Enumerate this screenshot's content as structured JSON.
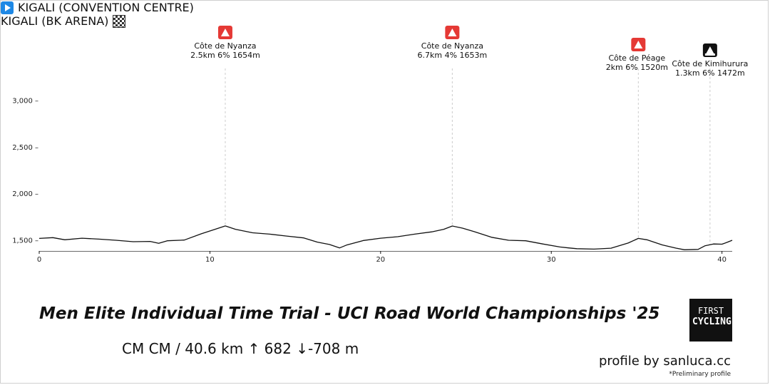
{
  "chart_data": {
    "type": "area",
    "title": "Men Elite Individual Time Trial - UCI Road World Championships '25",
    "xlabel": "",
    "ylabel": "",
    "xlim": [
      0,
      40.6
    ],
    "ylim": [
      1400,
      3300
    ],
    "x_ticks": [
      0,
      10,
      20,
      30,
      40
    ],
    "y_ticks": [
      1500,
      2000,
      2500,
      3000
    ],
    "y_tick_labels": [
      "1,500 –",
      "2,000 –",
      "2,500 –",
      "3,000 –"
    ],
    "profile": [
      [
        0,
        1520
      ],
      [
        0.8,
        1528
      ],
      [
        1.5,
        1505
      ],
      [
        2.5,
        1522
      ],
      [
        3.5,
        1512
      ],
      [
        4.5,
        1500
      ],
      [
        5.5,
        1485
      ],
      [
        6.5,
        1488
      ],
      [
        7.0,
        1468
      ],
      [
        7.5,
        1495
      ],
      [
        8.5,
        1502
      ],
      [
        9.5,
        1570
      ],
      [
        10.3,
        1618
      ],
      [
        10.9,
        1654
      ],
      [
        11.5,
        1618
      ],
      [
        12.5,
        1580
      ],
      [
        13.5,
        1566
      ],
      [
        14.5,
        1545
      ],
      [
        15.5,
        1525
      ],
      [
        16.3,
        1480
      ],
      [
        17.0,
        1455
      ],
      [
        17.6,
        1418
      ],
      [
        18.0,
        1448
      ],
      [
        19.0,
        1498
      ],
      [
        20.0,
        1522
      ],
      [
        21.0,
        1538
      ],
      [
        22.0,
        1566
      ],
      [
        23.0,
        1590
      ],
      [
        23.7,
        1618
      ],
      [
        24.2,
        1653
      ],
      [
        24.8,
        1630
      ],
      [
        25.5,
        1592
      ],
      [
        26.5,
        1532
      ],
      [
        27.5,
        1500
      ],
      [
        28.5,
        1495
      ],
      [
        29.5,
        1460
      ],
      [
        30.5,
        1428
      ],
      [
        31.0,
        1418
      ],
      [
        31.5,
        1410
      ],
      [
        32.5,
        1405
      ],
      [
        33.5,
        1415
      ],
      [
        34.5,
        1470
      ],
      [
        35.1,
        1520
      ],
      [
        35.6,
        1505
      ],
      [
        36.5,
        1450
      ],
      [
        37.3,
        1416
      ],
      [
        37.8,
        1398
      ],
      [
        38.6,
        1402
      ],
      [
        39.0,
        1440
      ],
      [
        39.5,
        1460
      ],
      [
        40.0,
        1458
      ],
      [
        40.3,
        1478
      ],
      [
        40.6,
        1500
      ]
    ],
    "climbs": [
      {
        "name": "Côte de Nyanza",
        "details": "2.5km 6% 1654m",
        "km": 10.9,
        "category": "climb"
      },
      {
        "name": "Côte de Nyanza",
        "details": "6.7km 4% 1653m",
        "km": 24.2,
        "category": "climb"
      },
      {
        "name": "Côte de Péage",
        "details": "2km 6% 1520m",
        "km": 35.1,
        "category": "climb"
      },
      {
        "name": "Côte de Kimihurura",
        "details": "1.3km 6% 1472m",
        "km": 39.3,
        "category": "finish-climb"
      }
    ],
    "colors": {
      "climb_marker": "#e53935",
      "finish_marker": "#111111",
      "line": "#111111",
      "guide": "#cccccc"
    }
  },
  "start": {
    "label": "KIGALI (CONVENTION CENTRE)",
    "icon": "play-icon"
  },
  "finish": {
    "label": "KIGALI (BK ARENA)",
    "icon": "checkered-flag-icon"
  },
  "race": {
    "title": "Men Elite Individual Time Trial - UCI Road World Championships '25"
  },
  "stats": {
    "text": "CM CM / 40.6 km  ↑ 682 ↓-708 m"
  },
  "logo": {
    "line1": "FIRST",
    "line2": "CYCLING"
  },
  "credit": {
    "text": "profile by sanluca.cc",
    "note": "*Preliminary profile"
  }
}
